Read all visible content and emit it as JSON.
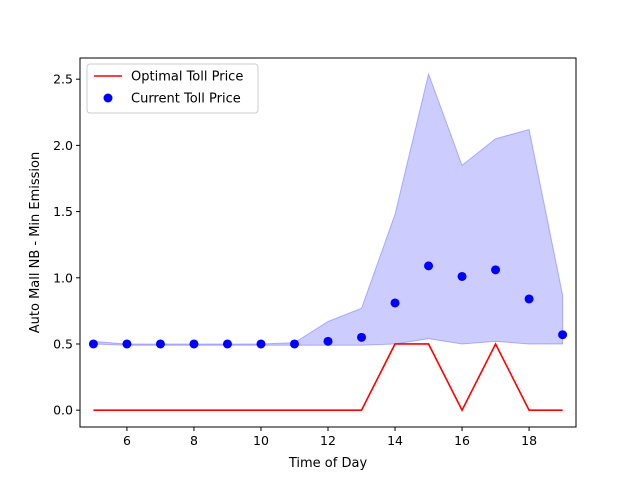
{
  "chart_data": {
    "type": "line",
    "title": "",
    "xlabel": "Time of Day",
    "ylabel": "Auto Mall NB - Min Emission",
    "xlim": [
      4.6,
      19.4
    ],
    "ylim": [
      -0.127,
      2.66
    ],
    "xticks": [
      6,
      8,
      10,
      12,
      14,
      16,
      18
    ],
    "yticks": [
      0.0,
      0.5,
      1.0,
      1.5,
      2.0,
      2.5
    ],
    "xtick_labels": [
      "6",
      "8",
      "10",
      "12",
      "14",
      "16",
      "18"
    ],
    "ytick_labels": [
      "0.0",
      "0.5",
      "1.0",
      "1.5",
      "2.0",
      "2.5"
    ],
    "grid": false,
    "legend_position": "top-left",
    "colors": {
      "optimal": "#ff0000",
      "current": "#0000ff",
      "band": "#0000ff"
    },
    "series": [
      {
        "name": "Optimal Toll Price",
        "kind": "line",
        "x": [
          5,
          6,
          7,
          8,
          9,
          10,
          11,
          12,
          13,
          14,
          15,
          16,
          17,
          18,
          19
        ],
        "values": [
          0,
          0,
          0,
          0,
          0,
          0,
          0,
          0,
          0,
          0.5,
          0.5,
          0,
          0.5,
          0,
          0
        ]
      },
      {
        "name": "Current Toll Price",
        "kind": "scatter",
        "x": [
          5,
          6,
          7,
          8,
          9,
          10,
          11,
          12,
          13,
          14,
          15,
          16,
          17,
          18,
          19
        ],
        "values": [
          0.5,
          0.5,
          0.5,
          0.5,
          0.5,
          0.5,
          0.5,
          0.52,
          0.55,
          0.81,
          1.09,
          1.01,
          1.06,
          0.84,
          0.57
        ]
      }
    ],
    "band": {
      "x": [
        5,
        6,
        7,
        8,
        9,
        10,
        11,
        12,
        13,
        14,
        15,
        16,
        17,
        18,
        19
      ],
      "lower": [
        0.5,
        0.49,
        0.49,
        0.49,
        0.49,
        0.49,
        0.49,
        0.49,
        0.49,
        0.5,
        0.54,
        0.5,
        0.52,
        0.5,
        0.5
      ],
      "upper": [
        0.52,
        0.5,
        0.5,
        0.5,
        0.5,
        0.5,
        0.51,
        0.67,
        0.77,
        1.48,
        2.54,
        1.85,
        2.05,
        2.12,
        0.87
      ]
    }
  }
}
